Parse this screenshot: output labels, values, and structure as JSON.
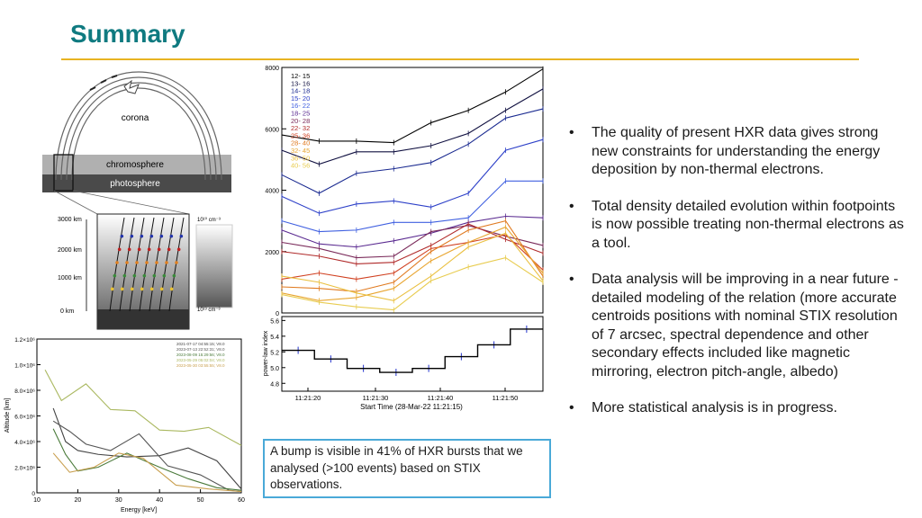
{
  "title": "Summary",
  "bullets": [
    "The quality of present HXR data gives strong new constraints for understanding the energy deposition by non-thermal electrons.",
    "Total density detailed evolution within footpoints is now possible treating non-thermal electrons as a tool.",
    "Data analysis will be improving in a near future - detailed modeling of the relation (more accurate centroids positions with nominal STIX resolution of 7 arcsec, spectral dependence and other secondary effects included like magnetic mirroring, electron pitch-angle, albedo)",
    "More statistical analysis is in progress."
  ],
  "note": "A bump is visible in 41% of HXR bursts that we analysed (>100 events) based on STIX observations.",
  "diagram": {
    "corona_label": "corona",
    "chromosphere_label": "chromosphere",
    "photosphere_label": "photosphere",
    "height_ticks": [
      "3000 km",
      "2000 km",
      "1000 km",
      "0 km"
    ],
    "density_top": "10¹⁰ cm⁻³",
    "density_bottom": "10¹³ cm⁻³"
  },
  "chart_data": [
    {
      "type": "line",
      "title": "",
      "xlabel": "",
      "ylabel": "",
      "yticks": [
        "0",
        "2000",
        "4000",
        "6000",
        "8000"
      ],
      "ylim": [
        0,
        8000
      ],
      "x": [
        0,
        1,
        2,
        3,
        4,
        5,
        6,
        7
      ],
      "series": [
        {
          "name": "12- 15",
          "color": "#000000",
          "values": [
            5800,
            5600,
            5600,
            5550,
            6200,
            6600,
            7200,
            7950
          ]
        },
        {
          "name": "13- 16",
          "color": "#101040",
          "values": [
            5300,
            4850,
            5250,
            5250,
            5450,
            5850,
            6600,
            7300
          ]
        },
        {
          "name": "14- 18",
          "color": "#1a2a90",
          "values": [
            4500,
            3900,
            4550,
            4700,
            4900,
            5500,
            6350,
            6650
          ]
        },
        {
          "name": "15- 20",
          "color": "#2d40c8",
          "values": [
            3800,
            3250,
            3550,
            3650,
            3450,
            3900,
            5300,
            5650
          ]
        },
        {
          "name": "16- 22",
          "color": "#4060e0",
          "values": [
            3000,
            2650,
            2700,
            2950,
            2950,
            3100,
            4300,
            4300
          ]
        },
        {
          "name": "18- 25",
          "color": "#5a2a90",
          "values": [
            2700,
            2250,
            2150,
            2350,
            2600,
            2950,
            3150,
            3100
          ]
        },
        {
          "name": "20- 28",
          "color": "#7a2a5a",
          "values": [
            2300,
            2100,
            1800,
            1850,
            2650,
            2850,
            2500,
            2200
          ]
        },
        {
          "name": "22- 32",
          "color": "#b02a2a",
          "values": [
            2000,
            1850,
            1600,
            1650,
            2200,
            2900,
            2400,
            1950
          ]
        },
        {
          "name": "25- 36",
          "color": "#d04020",
          "values": [
            1100,
            1300,
            1100,
            1300,
            2100,
            2300,
            2550,
            1400
          ]
        },
        {
          "name": "28- 40",
          "color": "#e07a20",
          "values": [
            850,
            800,
            700,
            1000,
            2000,
            2700,
            3000,
            1200
          ]
        },
        {
          "name": "32- 45",
          "color": "#e8a530",
          "values": [
            650,
            400,
            500,
            800,
            1700,
            2300,
            2800,
            1300
          ]
        },
        {
          "name": "36- 50",
          "color": "#eac040",
          "values": [
            1200,
            1000,
            650,
            400,
            1200,
            2150,
            2600,
            1050
          ]
        },
        {
          "name": "40- 56",
          "color": "#e8cc50",
          "values": [
            600,
            350,
            200,
            100,
            1050,
            1500,
            1800,
            1000
          ]
        }
      ]
    },
    {
      "type": "line",
      "title": "",
      "xlabel": "Start Time (28-Mar-22 11:21:15)",
      "ylabel": "power-law index",
      "xticks": [
        "11:21:20",
        "11:21:30",
        "11:21:40",
        "11:21:50"
      ],
      "yticks": [
        "4.8",
        "5.0",
        "5.2",
        "5.4",
        "5.6"
      ],
      "ylim": [
        4.7,
        5.65
      ],
      "x": [
        0,
        1,
        2,
        3,
        4,
        5,
        6,
        7
      ],
      "values": [
        5.22,
        5.11,
        4.99,
        4.94,
        4.99,
        5.14,
        5.29,
        5.49
      ]
    },
    {
      "type": "line",
      "title": "",
      "xlabel": "Energy [keV]",
      "ylabel": "Altitude [km]",
      "xticks": [
        "10",
        "20",
        "30",
        "40",
        "50",
        "60"
      ],
      "yticks": [
        "0",
        "2.0×10⁶",
        "4.0×10⁶",
        "6.0×10⁶",
        "8.0×10⁶",
        "1.0×10⁶",
        "1.2×10⁶"
      ],
      "xlim": [
        10,
        60
      ],
      "ylim": [
        0,
        1200000
      ],
      "series": [
        {
          "name": "2021-07-17 04:55:15; V8.0",
          "color": "#444444",
          "x": [
            14,
            17,
            20,
            25,
            32,
            40,
            47,
            54,
            60
          ],
          "values": [
            660000,
            400000,
            330000,
            300000,
            280000,
            290000,
            350000,
            250000,
            30000
          ]
        },
        {
          "name": "2023-07-13 22:52:31; V8.0",
          "color": "#555555",
          "x": [
            14,
            18,
            22,
            28,
            35,
            42,
            50,
            57,
            60
          ],
          "values": [
            560000,
            480000,
            380000,
            330000,
            460000,
            210000,
            140000,
            20000,
            10000
          ]
        },
        {
          "name": "2023-08-09 15:29:56; V8.0",
          "color": "#4a7a3a",
          "x": [
            14,
            17,
            20,
            25,
            32,
            40,
            47,
            54,
            60
          ],
          "values": [
            500000,
            300000,
            170000,
            200000,
            310000,
            200000,
            110000,
            40000,
            20000
          ]
        },
        {
          "name": "2023-05-29 05:02:04; V8.0",
          "color": "#aab860",
          "x": [
            12,
            16,
            22,
            28,
            34,
            40,
            46,
            52,
            60
          ],
          "values": [
            960000,
            720000,
            850000,
            650000,
            640000,
            490000,
            480000,
            510000,
            370000
          ]
        },
        {
          "name": "2023-05-30 03:55:55; V8.0",
          "color": "#c9a050",
          "x": [
            14,
            18,
            24,
            30,
            36,
            44,
            52,
            60
          ],
          "values": [
            310000,
            160000,
            200000,
            310000,
            270000,
            60000,
            30000,
            10000
          ]
        }
      ]
    }
  ]
}
